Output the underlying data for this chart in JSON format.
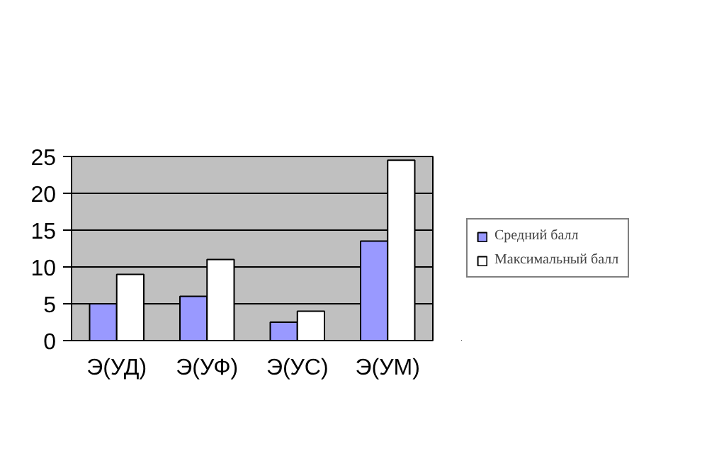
{
  "chart_data": {
    "type": "bar",
    "categories": [
      "Э(УД)",
      "Э(УФ)",
      "Э(УС)",
      "Э(УМ)"
    ],
    "series": [
      {
        "name": "Средний балл",
        "color": "#9999ff",
        "values": [
          5,
          6,
          2.5,
          13.5
        ]
      },
      {
        "name": "Максимальный балл",
        "color": "#ffffff",
        "values": [
          9,
          11,
          4,
          24.5
        ]
      }
    ],
    "ylim": [
      0,
      25
    ],
    "yticks": [
      0,
      5,
      10,
      15,
      20,
      25
    ],
    "grid": "y",
    "legend": "right"
  }
}
